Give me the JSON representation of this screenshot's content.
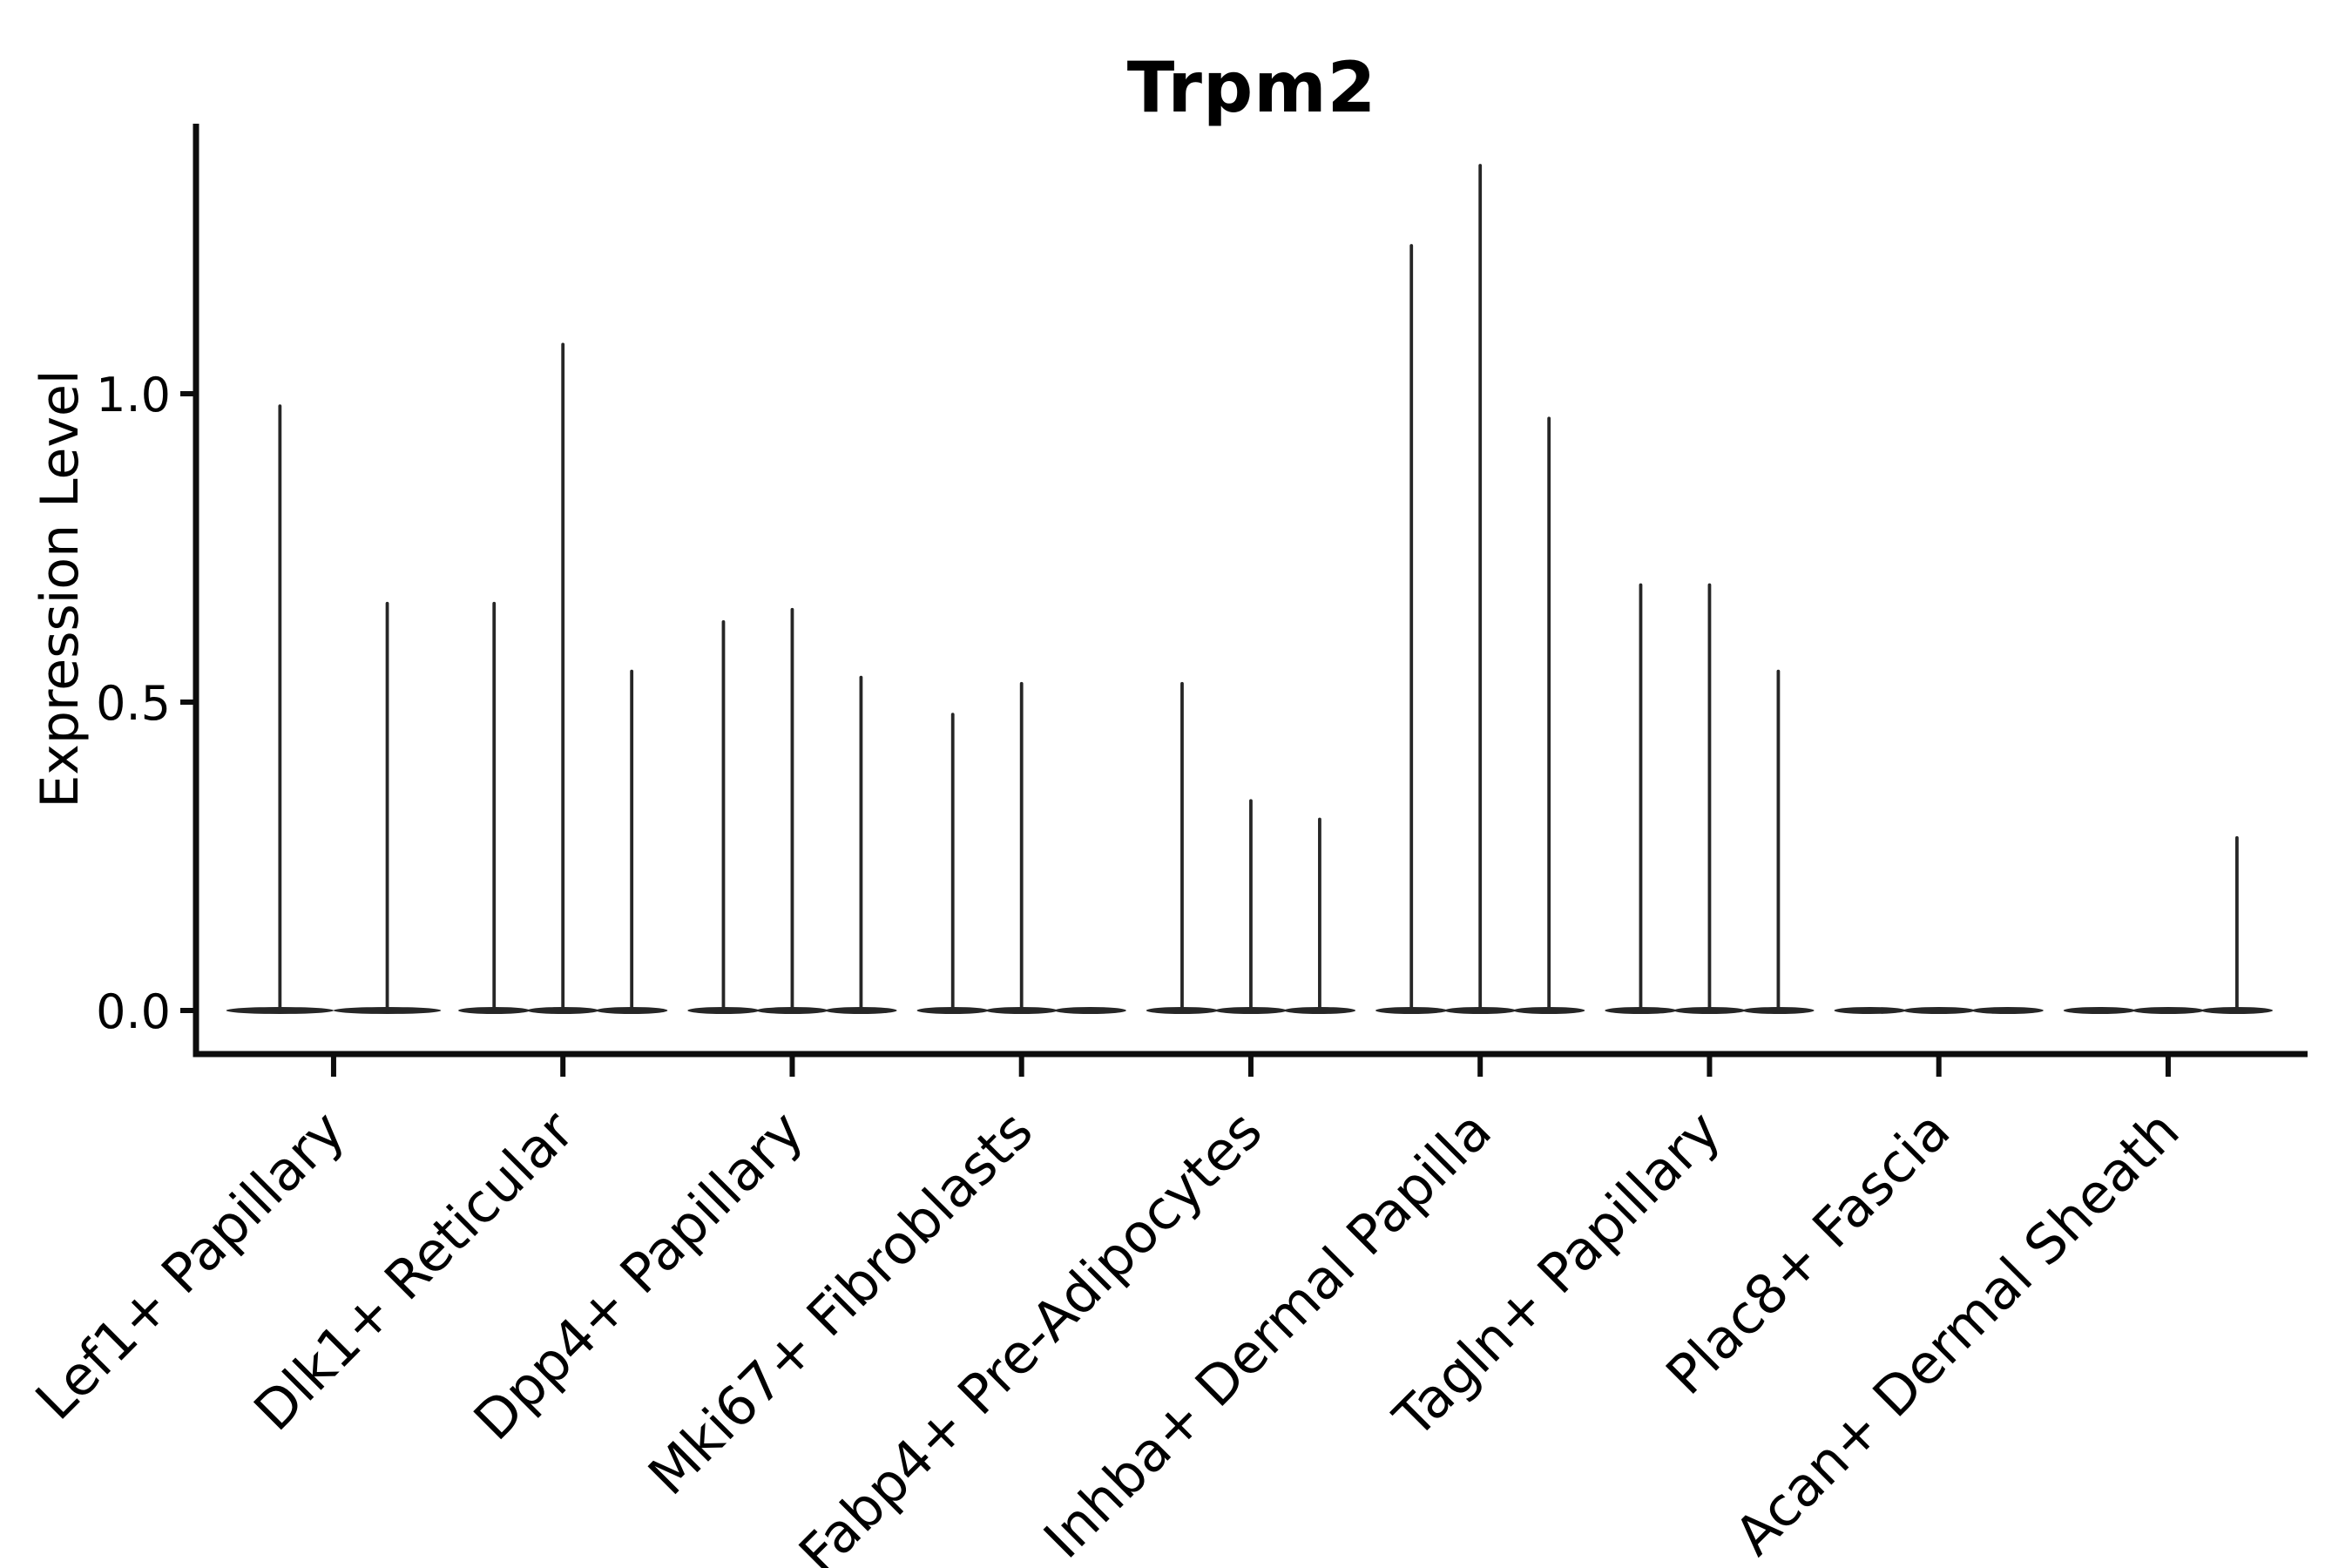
{
  "title": "Trpm2",
  "ylabel": "Expression Level",
  "colors": {
    "violin": "#262626",
    "axis": "#0d0d0d",
    "text": "#000000",
    "background": "#ffffff"
  },
  "chart_data": {
    "type": "violin",
    "title": "Trpm2",
    "xlabel": "",
    "ylabel": "Expression Level",
    "ylim": [
      -0.072,
      1.44
    ],
    "yticks": [
      0.0,
      0.5,
      1.0
    ],
    "ytick_labels": [
      "0.0",
      "0.5",
      "1.0"
    ],
    "grid": false,
    "legend": "none",
    "note": "Each category shows narrow violins: a flat density base at expression 0 plus a thin spike up to the maximum expression value. Offsets are in category-axis units; max is expression level (0 = flat violin, no spike).",
    "categories": [
      {
        "label": "Lef1+ Papillary",
        "violins": [
          {
            "offset": -0.234,
            "max": 0.98
          },
          {
            "offset": 0.234,
            "max": 0.66
          }
        ]
      },
      {
        "label": "Dlk1+ Reticular",
        "violins": [
          {
            "offset": -0.3,
            "max": 0.66
          },
          {
            "offset": 0.0,
            "max": 1.08
          },
          {
            "offset": 0.3,
            "max": 0.55
          }
        ]
      },
      {
        "label": "Dpp4+ Papillary",
        "violins": [
          {
            "offset": -0.3,
            "max": 0.63
          },
          {
            "offset": 0.0,
            "max": 0.65
          },
          {
            "offset": 0.3,
            "max": 0.54
          }
        ]
      },
      {
        "label": "Mki67+ Fibroblasts",
        "violins": [
          {
            "offset": -0.3,
            "max": 0.48
          },
          {
            "offset": 0.0,
            "max": 0.53
          },
          {
            "offset": 0.3,
            "max": 0.0
          }
        ]
      },
      {
        "label": "Fabp4+ Pre-Adipocytes",
        "violins": [
          {
            "offset": -0.3,
            "max": 0.53
          },
          {
            "offset": 0.0,
            "max": 0.34
          },
          {
            "offset": 0.3,
            "max": 0.31
          }
        ]
      },
      {
        "label": "Inhba+ Dermal Papilla",
        "violins": [
          {
            "offset": -0.3,
            "max": 1.24
          },
          {
            "offset": 0.0,
            "max": 1.37
          },
          {
            "offset": 0.3,
            "max": 0.96
          }
        ]
      },
      {
        "label": "Tagln+ Papillary",
        "violins": [
          {
            "offset": -0.3,
            "max": 0.69
          },
          {
            "offset": 0.0,
            "max": 0.69
          },
          {
            "offset": 0.3,
            "max": 0.55
          }
        ]
      },
      {
        "label": "Plac8+ Fascia",
        "violins": [
          {
            "offset": -0.3,
            "max": 0.0
          },
          {
            "offset": 0.0,
            "max": 0.0
          },
          {
            "offset": 0.3,
            "max": 0.0
          }
        ]
      },
      {
        "label": "Acan+ Dermal Sheath",
        "violins": [
          {
            "offset": -0.3,
            "max": 0.0
          },
          {
            "offset": 0.0,
            "max": 0.0
          },
          {
            "offset": 0.3,
            "max": 0.28
          }
        ]
      }
    ]
  }
}
